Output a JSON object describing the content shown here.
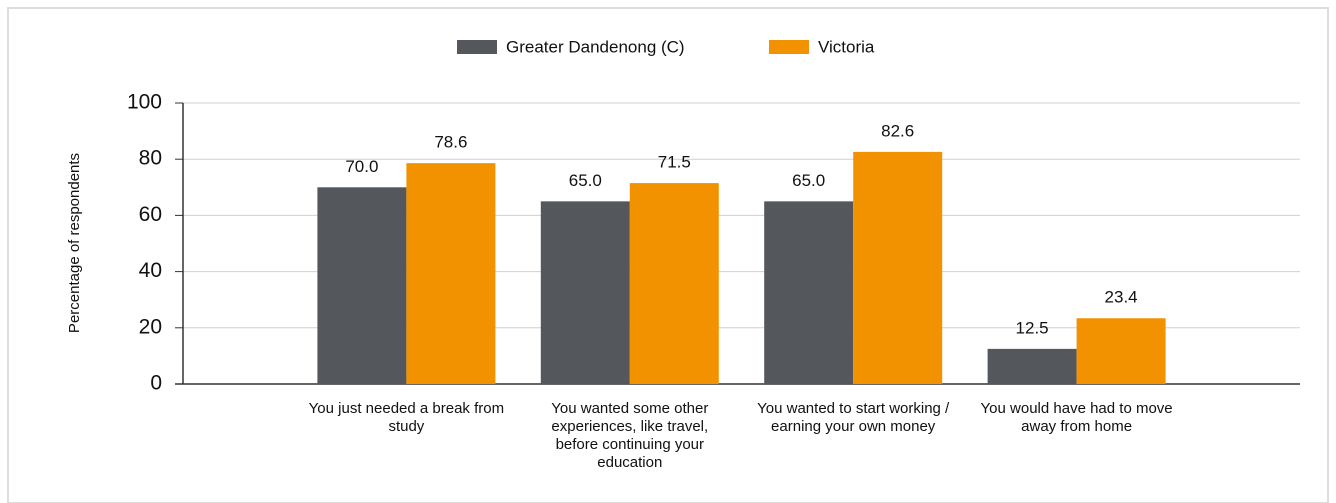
{
  "chart_data": {
    "type": "bar",
    "y_label": "Percentage of respondents",
    "categories": [
      "You just needed a break from study",
      "You wanted some other experiences, like travel, before continuing your education",
      "You wanted to start working / earning your own money",
      "You would have had to move away from home"
    ],
    "series": [
      {
        "name": "Greater Dandenong (C)",
        "color": "#54575c",
        "values": [
          70.0,
          65.0,
          65.0,
          12.5
        ],
        "value_labels": [
          "70.0",
          "65.0",
          "65.0",
          "12.5"
        ]
      },
      {
        "name": "Victoria",
        "color": "#f39200",
        "values": [
          78.6,
          71.5,
          82.6,
          23.4
        ],
        "value_labels": [
          "78.6",
          "71.5",
          "82.6",
          "23.4"
        ]
      }
    ],
    "ylim": [
      0,
      100
    ],
    "yticks": [
      0,
      20,
      40,
      60,
      80,
      100
    ],
    "grid": true,
    "legend": "top"
  }
}
